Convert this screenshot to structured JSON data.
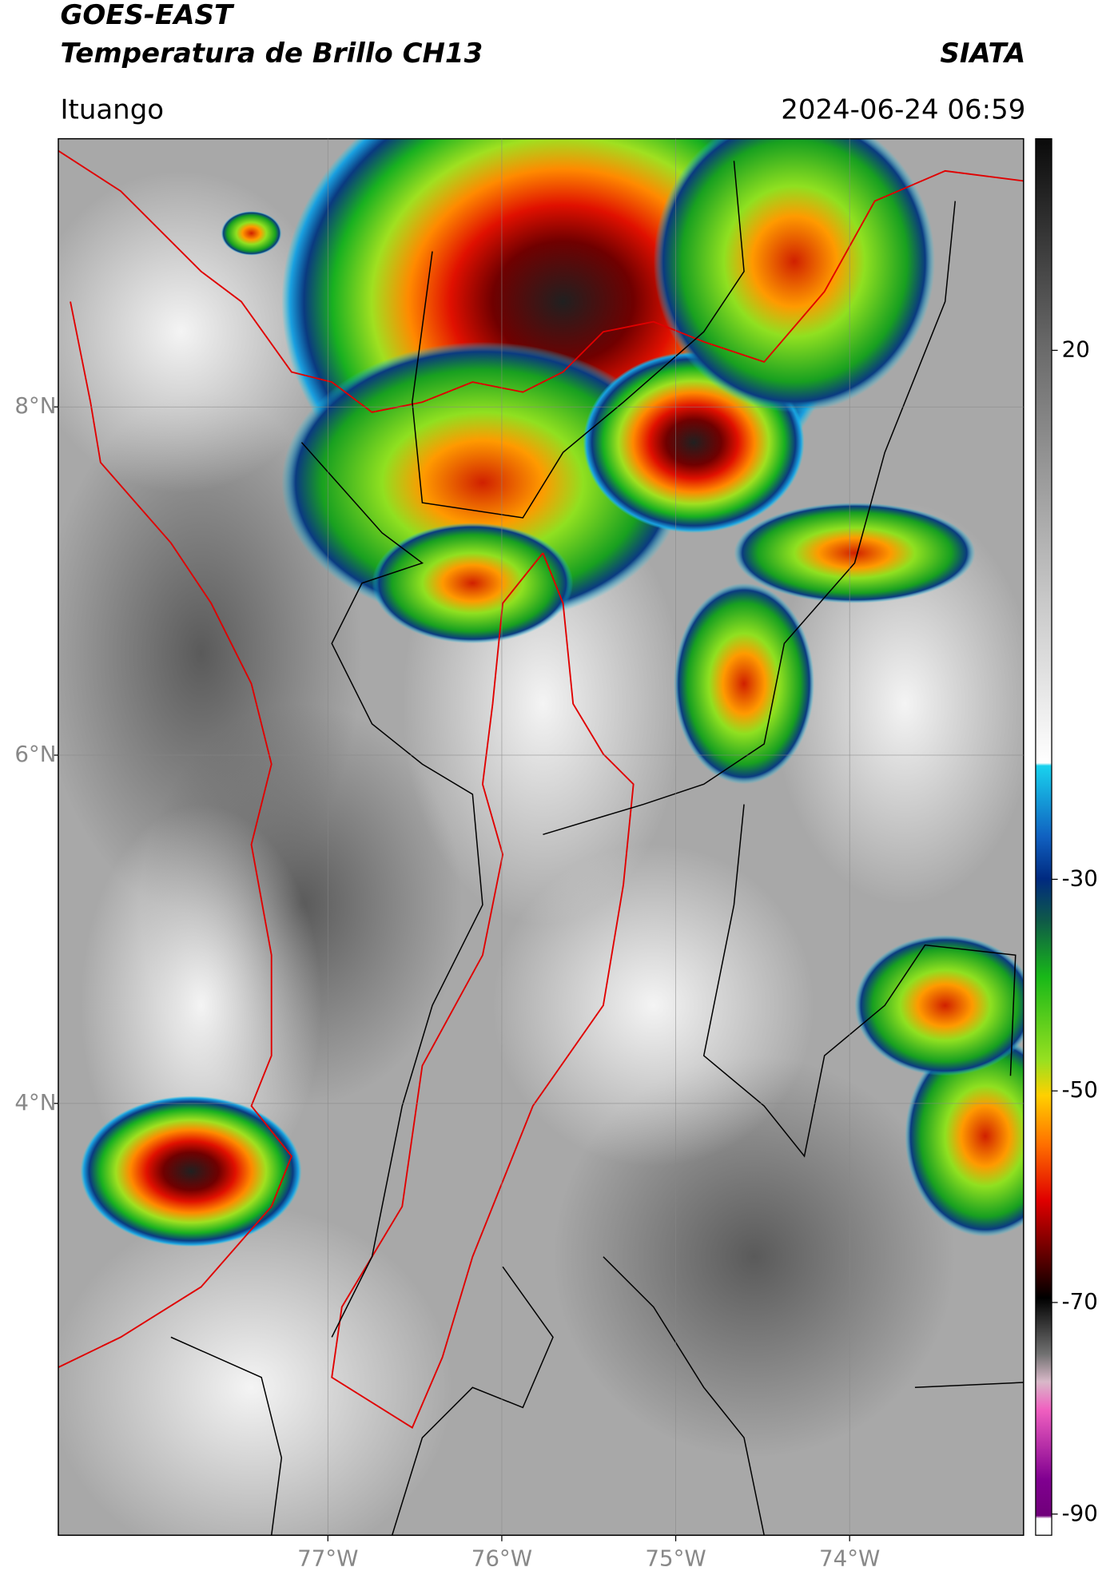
{
  "header": {
    "title": "GOES-EAST",
    "subtitle": "Temperatura de Brillo CH13",
    "brand": "SIATA",
    "location": "Ituango",
    "datetime": "2024-06-24 06:59"
  },
  "map": {
    "xlim": [
      -78.55,
      -73.0
    ],
    "ylim": [
      1.52,
      9.54
    ],
    "xticks": [
      {
        "value": -77,
        "label": "77°W"
      },
      {
        "value": -76,
        "label": "76°W"
      },
      {
        "value": -75,
        "label": "75°W"
      },
      {
        "value": -74,
        "label": "74°W"
      }
    ],
    "yticks": [
      {
        "value": 8,
        "label": "8°N"
      },
      {
        "value": 6,
        "label": "6°N"
      },
      {
        "value": 4,
        "label": "4°N"
      }
    ]
  },
  "colorbar": {
    "lim": [
      -92,
      40
    ],
    "ticks": [
      20,
      -30,
      -50,
      -70,
      -90
    ]
  }
}
